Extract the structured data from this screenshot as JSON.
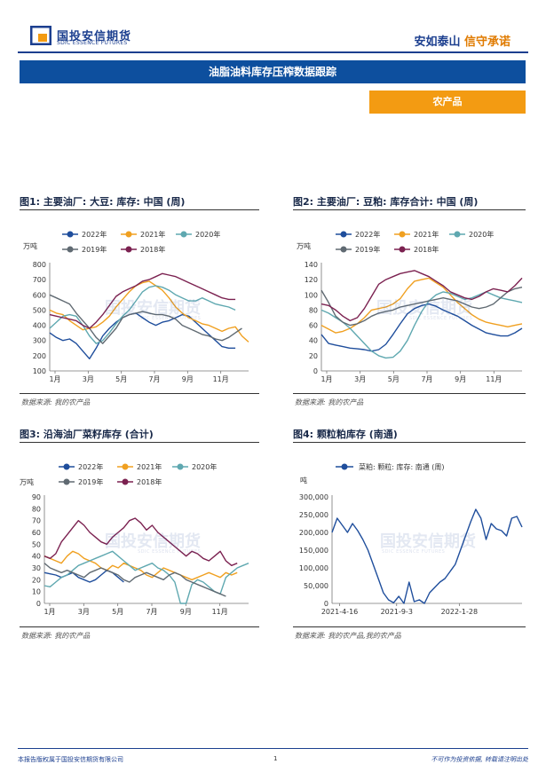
{
  "header": {
    "logo_cn": "国投安信期货",
    "logo_en": "SDIC ESSENCE FUTURES",
    "slogan_1": "安如泰山",
    "slogan_2": "信守承诺",
    "brand_color": "#1c3f8f",
    "accent_color": "#f39b12"
  },
  "title": "油脂油料库存压榨数据跟踪",
  "tag": "农产品",
  "watermark": {
    "cn": "国投安信期货",
    "en": "SDIC ESSENCE FUTURES"
  },
  "figures": [
    {
      "title": "图1: 主要油厂: 大豆: 库存: 中国 (周)",
      "source": "数据来源: 我的农产品"
    },
    {
      "title": "图2: 主要油厂: 豆粕: 库存合计: 中国 (周)",
      "source": "数据来源: 我的农产品"
    },
    {
      "title": "图3: 沿海油厂菜籽库存 (合计)",
      "source": "数据来源: 我的农产品"
    },
    {
      "title": "图4: 颗粒粕库存 (南通)",
      "source": "数据来源: 我的农产品,我的农产品"
    }
  ],
  "chart_data": [
    {
      "type": "line",
      "unit": "万吨",
      "ylim": [
        100,
        800
      ],
      "yticks": [
        100,
        200,
        300,
        400,
        500,
        600,
        700,
        800
      ],
      "x_ticks": [
        "1月",
        "3月",
        "5月",
        "7月",
        "9月",
        "11月"
      ],
      "series": [
        {
          "name": "2022年",
          "color": "#1f4e9c",
          "values": [
            350,
            320,
            300,
            310,
            280,
            230,
            180,
            250,
            330,
            380,
            420,
            450,
            470,
            480,
            450,
            420,
            400,
            420,
            430,
            450,
            470,
            460,
            420,
            380,
            340,
            300,
            260,
            250,
            250
          ]
        },
        {
          "name": "2021年",
          "color": "#f0a020",
          "values": [
            500,
            480,
            470,
            430,
            400,
            370,
            380,
            390,
            420,
            460,
            520,
            570,
            620,
            660,
            680,
            690,
            660,
            630,
            580,
            520,
            480,
            450,
            430,
            410,
            400,
            380,
            360,
            380,
            390,
            330,
            290
          ]
        },
        {
          "name": "2020年",
          "color": "#5fa8b0",
          "values": [
            380,
            420,
            460,
            470,
            460,
            400,
            330,
            280,
            300,
            350,
            410,
            460,
            500,
            560,
            620,
            650,
            660,
            650,
            630,
            600,
            580,
            560,
            560,
            580,
            560,
            540,
            530,
            520,
            500
          ]
        },
        {
          "name": "2019年",
          "color": "#606a72",
          "values": [
            600,
            580,
            560,
            540,
            480,
            430,
            380,
            320,
            280,
            330,
            380,
            450,
            470,
            480,
            490,
            480,
            470,
            470,
            460,
            440,
            400,
            380,
            360,
            340,
            330,
            310,
            300,
            320,
            350,
            380
          ]
        },
        {
          "name": "2018年",
          "color": "#7b2150",
          "values": [
            470,
            460,
            450,
            440,
            430,
            400,
            380,
            420,
            470,
            530,
            590,
            620,
            640,
            660,
            690,
            700,
            720,
            740,
            730,
            720,
            700,
            680,
            660,
            640,
            620,
            600,
            580,
            570,
            570
          ]
        }
      ]
    },
    {
      "type": "line",
      "unit": "万吨",
      "ylim": [
        0,
        140
      ],
      "yticks": [
        0,
        20,
        40,
        60,
        80,
        100,
        120,
        140
      ],
      "x_ticks": [
        "1月",
        "3月",
        "5月",
        "7月",
        "9月",
        "11月"
      ],
      "series": [
        {
          "name": "2022年",
          "color": "#1f4e9c",
          "values": [
            48,
            36,
            34,
            32,
            30,
            29,
            28,
            26,
            28,
            35,
            48,
            62,
            75,
            82,
            86,
            88,
            85,
            80,
            76,
            72,
            66,
            60,
            55,
            50,
            48,
            46,
            46,
            50,
            56
          ]
        },
        {
          "name": "2021年",
          "color": "#f0a020",
          "values": [
            60,
            55,
            50,
            52,
            56,
            62,
            70,
            80,
            82,
            84,
            88,
            95,
            108,
            118,
            120,
            122,
            116,
            110,
            100,
            90,
            82,
            74,
            68,
            64,
            62,
            60,
            58,
            60,
            62
          ]
        },
        {
          "name": "2020年",
          "color": "#5fa8b0",
          "values": [
            80,
            76,
            70,
            64,
            56,
            46,
            36,
            26,
            20,
            17,
            18,
            26,
            40,
            60,
            78,
            92,
            100,
            104,
            102,
            98,
            94,
            96,
            100,
            104,
            100,
            96,
            94,
            92,
            90
          ]
        },
        {
          "name": "2019年",
          "color": "#606a72",
          "values": [
            106,
            90,
            72,
            64,
            60,
            62,
            66,
            72,
            76,
            78,
            80,
            84,
            86,
            88,
            90,
            92,
            94,
            96,
            94,
            92,
            88,
            84,
            82,
            84,
            88,
            96,
            104,
            108,
            110
          ]
        },
        {
          "name": "2018年",
          "color": "#7b2150",
          "values": [
            88,
            86,
            80,
            72,
            66,
            70,
            82,
            98,
            114,
            120,
            124,
            128,
            130,
            132,
            128,
            124,
            118,
            112,
            104,
            100,
            96,
            94,
            98,
            104,
            108,
            106,
            104,
            112,
            122
          ]
        }
      ]
    },
    {
      "type": "line",
      "unit": "万吨",
      "ylim": [
        0,
        90
      ],
      "yticks": [
        0,
        10,
        20,
        30,
        40,
        50,
        60,
        70,
        80,
        90
      ],
      "x_ticks": [
        "1月",
        "3月",
        "5月",
        "7月",
        "9月",
        "11月"
      ],
      "series": [
        {
          "name": "2022年",
          "color": "#1f4e9c",
          "values": [
            26,
            25,
            24,
            22,
            24,
            26,
            22,
            20,
            18,
            20,
            24,
            28,
            26,
            22,
            18
          ]
        },
        {
          "name": "2021年",
          "color": "#f0a020",
          "values": [
            40,
            38,
            36,
            34,
            40,
            44,
            42,
            38,
            36,
            34,
            30,
            28,
            32,
            30,
            34,
            32,
            30,
            28,
            24,
            22,
            26,
            30,
            28,
            26,
            24,
            22,
            20,
            22,
            24,
            26,
            24,
            22,
            26,
            24,
            26
          ]
        },
        {
          "name": "2020年",
          "color": "#5fa8b0",
          "values": [
            15,
            14,
            18,
            22,
            24,
            28,
            32,
            34,
            36,
            38,
            40,
            42,
            44,
            40,
            36,
            32,
            28,
            30,
            32,
            34,
            30,
            28,
            24,
            18,
            0,
            0,
            16,
            20,
            18,
            14,
            10,
            8,
            22,
            26,
            30,
            32,
            34
          ]
        },
        {
          "name": "2019年",
          "color": "#606a72",
          "values": [
            34,
            30,
            28,
            26,
            28,
            26,
            24,
            22,
            26,
            28,
            30,
            28,
            26,
            24,
            20,
            18,
            22,
            24,
            26,
            24,
            22,
            20,
            24,
            26,
            24,
            20,
            18,
            16,
            14,
            12,
            10,
            8,
            6
          ]
        },
        {
          "name": "2018年",
          "color": "#7b2150",
          "values": [
            40,
            38,
            42,
            52,
            58,
            64,
            70,
            66,
            60,
            56,
            52,
            50,
            56,
            60,
            64,
            70,
            72,
            68,
            62,
            66,
            60,
            56,
            52,
            48,
            44,
            40,
            44,
            42,
            38,
            36,
            40,
            44,
            36,
            32,
            34
          ]
        }
      ]
    },
    {
      "type": "line",
      "legend": "菜粕: 颗粒: 库存: 南通 (周)",
      "unit": "吨",
      "ylim": [
        0,
        300000
      ],
      "yticks": [
        0,
        50000,
        100000,
        150000,
        200000,
        250000,
        300000
      ],
      "ytick_labels": [
        "0",
        "50,000",
        "100,000",
        "150,000",
        "200,000",
        "250,000",
        "300,000"
      ],
      "x_ticks": [
        "2021-4-16",
        "2021-9-3",
        "2022-1-28"
      ],
      "series": [
        {
          "name": "菜粕: 颗粒: 库存: 南通 (周)",
          "color": "#1f4e9c",
          "values": [
            200000,
            240000,
            220000,
            200000,
            225000,
            205000,
            180000,
            150000,
            110000,
            70000,
            30000,
            10000,
            2000,
            20000,
            0,
            60000,
            5000,
            10000,
            0,
            30000,
            45000,
            60000,
            70000,
            90000,
            110000,
            150000,
            190000,
            230000,
            265000,
            240000,
            180000,
            225000,
            210000,
            205000,
            190000,
            240000,
            245000,
            215000
          ]
        }
      ]
    }
  ],
  "footer": {
    "left": "本报告版权属于国投安信期货有限公司",
    "page": "1",
    "right": "不可作为投资依据, 转载请注明出处"
  }
}
